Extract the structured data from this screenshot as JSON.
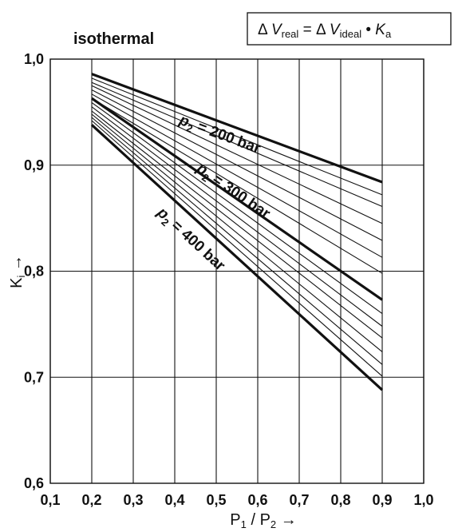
{
  "chart_data": {
    "type": "line",
    "title": "isothermal",
    "formula": {
      "delta": "Δ",
      "v": "V",
      "real_sub": "real",
      "equals": "=",
      "ideal_sub": "ideal",
      "dot": "•",
      "k": "K",
      "k_sub": "a"
    },
    "xlabel": {
      "p1": "P",
      "p1_sub": "1",
      "slash": "/",
      "p2": "P",
      "p2_sub": "2",
      "arrow": "→"
    },
    "ylabel": {
      "main": "K",
      "sub": "i",
      "arrow": "→"
    },
    "xlim": [
      0.1,
      1.0
    ],
    "ylim": [
      0.6,
      1.0
    ],
    "grid": true,
    "x_ticks": [
      "0,1",
      "0,2",
      "0,3",
      "0,4",
      "0,5",
      "0,6",
      "0,7",
      "0,8",
      "0,9",
      "1,0"
    ],
    "y_ticks": [
      "0,6",
      "0,7",
      "0,8",
      "0,9",
      "1,0"
    ],
    "series": [
      {
        "x": [
          0.2,
          0.9
        ],
        "y": [
          0.986,
          0.884
        ],
        "bold": true
      },
      {
        "x": [
          0.2,
          0.9
        ],
        "y": [
          0.982,
          0.872
        ],
        "bold": false
      },
      {
        "x": [
          0.2,
          0.9
        ],
        "y": [
          0.978,
          0.861
        ],
        "bold": false
      },
      {
        "x": [
          0.2,
          0.9
        ],
        "y": [
          0.975,
          0.845
        ],
        "bold": false
      },
      {
        "x": [
          0.2,
          0.9
        ],
        "y": [
          0.971,
          0.829
        ],
        "bold": false
      },
      {
        "x": [
          0.2,
          0.9
        ],
        "y": [
          0.967,
          0.813
        ],
        "bold": false
      },
      {
        "x": [
          0.2,
          0.9
        ],
        "y": [
          0.963,
          0.798
        ],
        "bold": false
      },
      {
        "x": [
          0.2,
          0.9
        ],
        "y": [
          0.963,
          0.773
        ],
        "bold": true
      },
      {
        "x": [
          0.2,
          0.9
        ],
        "y": [
          0.959,
          0.76
        ],
        "bold": false
      },
      {
        "x": [
          0.2,
          0.9
        ],
        "y": [
          0.955,
          0.748
        ],
        "bold": false
      },
      {
        "x": [
          0.2,
          0.9
        ],
        "y": [
          0.951,
          0.737
        ],
        "bold": false
      },
      {
        "x": [
          0.2,
          0.9
        ],
        "y": [
          0.948,
          0.724
        ],
        "bold": false
      },
      {
        "x": [
          0.2,
          0.9
        ],
        "y": [
          0.945,
          0.712
        ],
        "bold": false
      },
      {
        "x": [
          0.2,
          0.9
        ],
        "y": [
          0.942,
          0.701
        ],
        "bold": false
      },
      {
        "x": [
          0.2,
          0.9
        ],
        "y": [
          0.938,
          0.688
        ],
        "bold": true
      }
    ],
    "annotations": [
      {
        "p": "p",
        "sub": "2",
        "text": " = 200 bar",
        "x": 0.505,
        "y": 0.925
      },
      {
        "p": "p",
        "sub": "2",
        "text": " = 300 bar",
        "x": 0.535,
        "y": 0.872
      },
      {
        "p": "p",
        "sub": "2",
        "text": " = 400 bar",
        "x": 0.432,
        "y": 0.827
      }
    ]
  }
}
